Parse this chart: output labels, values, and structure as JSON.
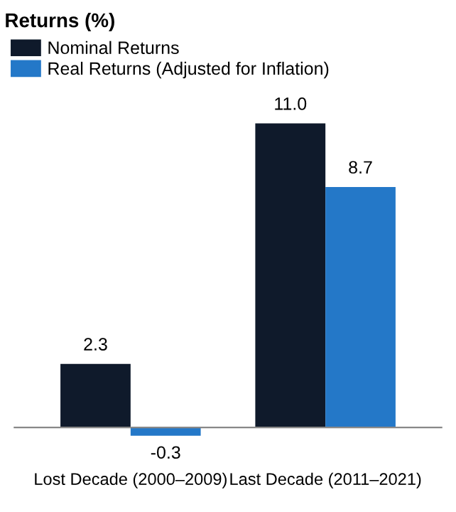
{
  "chart_data": {
    "type": "bar",
    "title": "Returns (%)",
    "categories": [
      "Lost Decade (2000–2009)",
      "Last Decade (2011–2021)"
    ],
    "series": [
      {
        "name": "Nominal Returns",
        "color": "#0f1a2b",
        "values": [
          2.3,
          11.0
        ],
        "value_labels": [
          "2.3",
          "11.0"
        ]
      },
      {
        "name": "Real Returns (Adjusted for Inflation)",
        "color": "#2478c8",
        "values": [
          -0.3,
          8.7
        ],
        "value_labels": [
          "-0.3",
          "8.7"
        ]
      }
    ],
    "legend": "top left",
    "grid": false
  }
}
